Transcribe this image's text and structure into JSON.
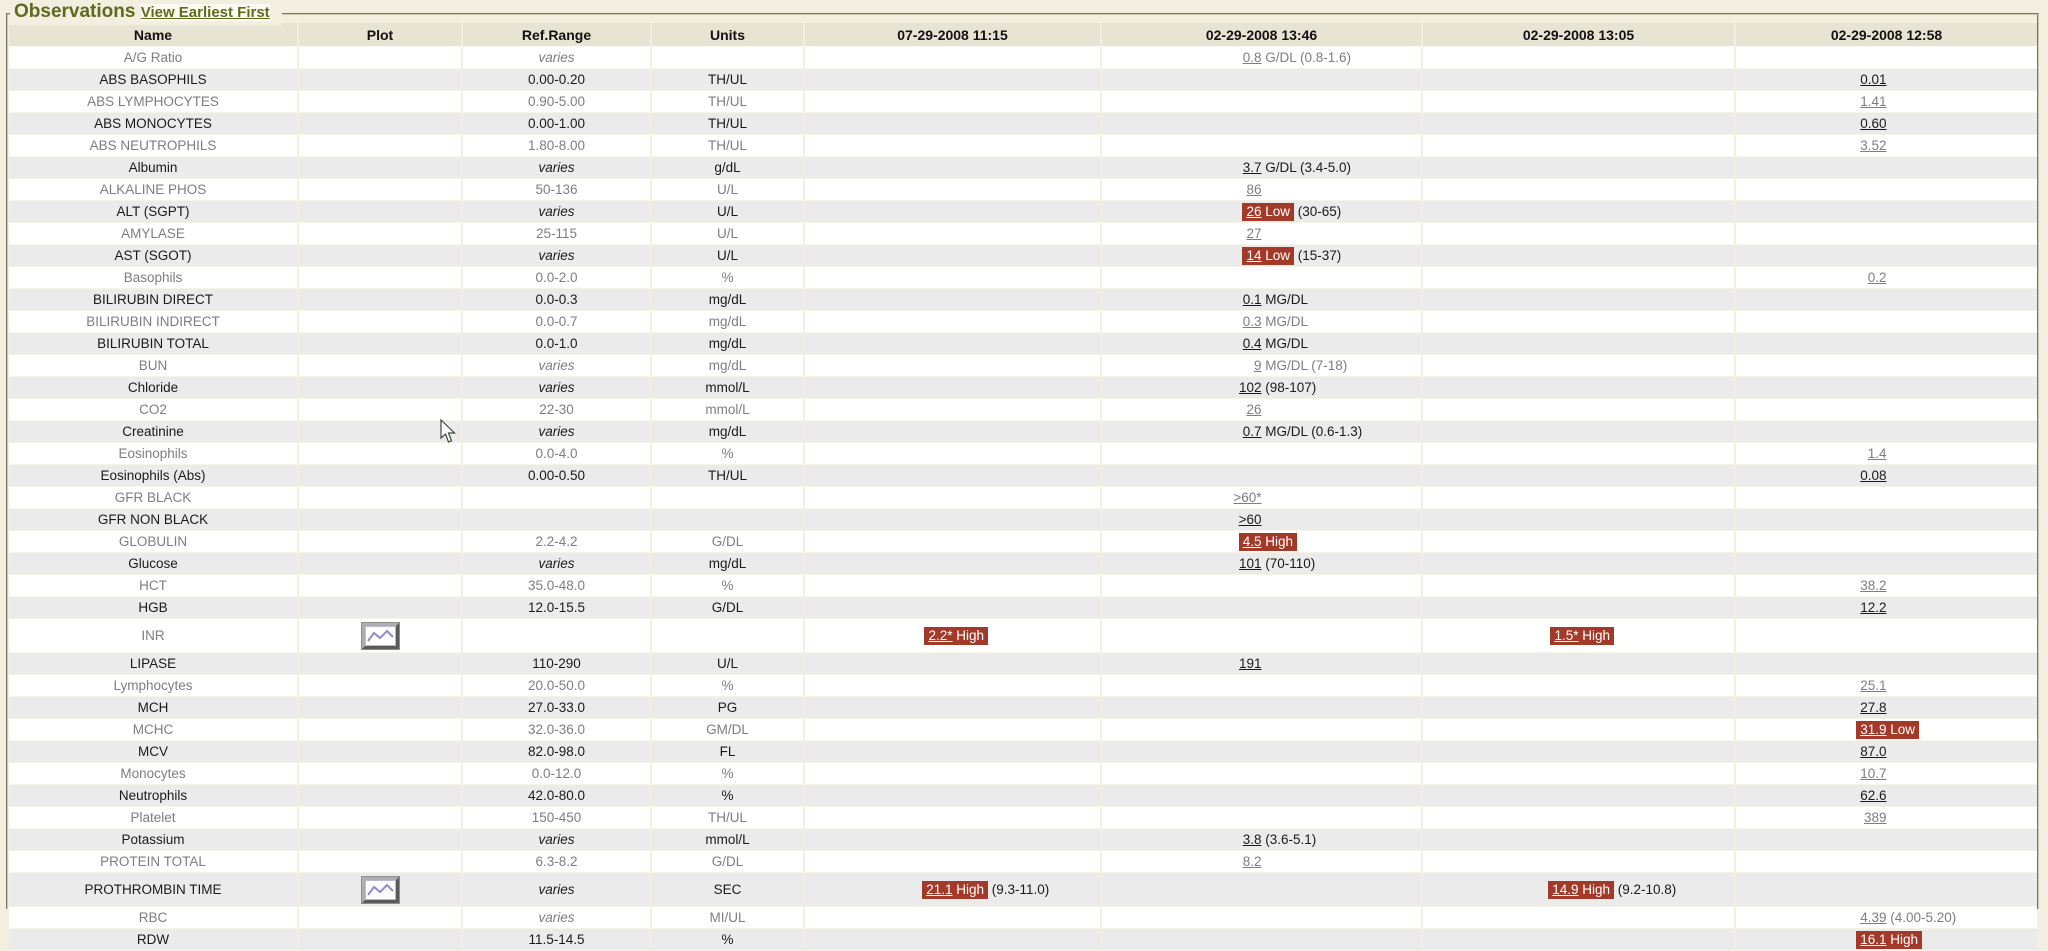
{
  "panel": {
    "title": "Observations",
    "view_link": "View Earliest First"
  },
  "colors": {
    "page_background": "#f2eee0",
    "header_background": "#e8e4d3",
    "stripe_gray": "#ebebeb",
    "stripe_white": "#ffffff",
    "abnormal_badge": "#a33a29",
    "accent_olive": "#5c6b1f"
  },
  "columns": [
    "Name",
    "Plot",
    "Ref.Range",
    "Units",
    "07-29-2008 11:15",
    "02-29-2008 13:46",
    "02-29-2008 13:05",
    "02-29-2008 12:58"
  ],
  "rows": [
    {
      "name": "A/G Ratio",
      "plot": false,
      "ref": "varies",
      "units": "",
      "results": [
        null,
        {
          "value": "0.8",
          "suffix": " G/DL (0.8-1.6)"
        },
        null,
        null
      ]
    },
    {
      "name": "ABS BASOPHILS",
      "plot": false,
      "ref": "0.00-0.20",
      "units": "TH/UL",
      "results": [
        null,
        null,
        null,
        {
          "value": "0.01"
        }
      ]
    },
    {
      "name": "ABS LYMPHOCYTES",
      "plot": false,
      "ref": "0.90-5.00",
      "units": "TH/UL",
      "results": [
        null,
        null,
        null,
        {
          "value": "1.41"
        }
      ]
    },
    {
      "name": "ABS MONOCYTES",
      "plot": false,
      "ref": "0.00-1.00",
      "units": "TH/UL",
      "results": [
        null,
        null,
        null,
        {
          "value": "0.60"
        }
      ]
    },
    {
      "name": "ABS NEUTROPHILS",
      "plot": false,
      "ref": "1.80-8.00",
      "units": "TH/UL",
      "results": [
        null,
        null,
        null,
        {
          "value": "3.52"
        }
      ]
    },
    {
      "name": "Albumin",
      "plot": false,
      "ref": "varies",
      "units": "g/dL",
      "results": [
        null,
        {
          "value": "3.7",
          "suffix": " G/DL (3.4-5.0)"
        },
        null,
        null
      ]
    },
    {
      "name": "ALKALINE PHOS",
      "plot": false,
      "ref": "50-136",
      "units": "U/L",
      "results": [
        null,
        {
          "value": "86"
        },
        null,
        null
      ]
    },
    {
      "name": "ALT (SGPT)",
      "plot": false,
      "ref": "varies",
      "units": "U/L",
      "results": [
        null,
        {
          "value": "26",
          "sev": "Low",
          "suffix": " (30-65)"
        },
        null,
        null
      ]
    },
    {
      "name": "AMYLASE",
      "plot": false,
      "ref": "25-115",
      "units": "U/L",
      "results": [
        null,
        {
          "value": "27"
        },
        null,
        null
      ]
    },
    {
      "name": "AST (SGOT)",
      "plot": false,
      "ref": "varies",
      "units": "U/L",
      "results": [
        null,
        {
          "value": "14",
          "sev": "Low",
          "suffix": " (15-37)"
        },
        null,
        null
      ]
    },
    {
      "name": "Basophils",
      "plot": false,
      "ref": "0.0-2.0",
      "units": "%",
      "results": [
        null,
        null,
        null,
        {
          "value": "0.2"
        }
      ]
    },
    {
      "name": "BILIRUBIN DIRECT",
      "plot": false,
      "ref": "0.0-0.3",
      "units": "mg/dL",
      "results": [
        null,
        {
          "value": "0.1",
          "suffix": " MG/DL"
        },
        null,
        null
      ]
    },
    {
      "name": "BILIRUBIN INDIRECT",
      "plot": false,
      "ref": "0.0-0.7",
      "units": "mg/dL",
      "results": [
        null,
        {
          "value": "0.3",
          "suffix": " MG/DL"
        },
        null,
        null
      ]
    },
    {
      "name": "BILIRUBIN TOTAL",
      "plot": false,
      "ref": "0.0-1.0",
      "units": "mg/dL",
      "results": [
        null,
        {
          "value": "0.4",
          "suffix": " MG/DL"
        },
        null,
        null
      ]
    },
    {
      "name": "BUN",
      "plot": false,
      "ref": "varies",
      "units": "mg/dL",
      "results": [
        null,
        {
          "value": "9",
          "suffix": " MG/DL (7-18)"
        },
        null,
        null
      ]
    },
    {
      "name": "Chloride",
      "plot": false,
      "ref": "varies",
      "units": "mmol/L",
      "results": [
        null,
        {
          "value": "102",
          "suffix": " (98-107)"
        },
        null,
        null
      ]
    },
    {
      "name": "CO2",
      "plot": false,
      "ref": "22-30",
      "units": "mmol/L",
      "results": [
        null,
        {
          "value": "26"
        },
        null,
        null
      ]
    },
    {
      "name": "Creatinine",
      "plot": false,
      "ref": "varies",
      "units": "mg/dL",
      "results": [
        null,
        {
          "value": "0.7",
          "suffix": " MG/DL (0.6-1.3)"
        },
        null,
        null
      ]
    },
    {
      "name": "Eosinophils",
      "plot": false,
      "ref": "0.0-4.0",
      "units": "%",
      "results": [
        null,
        null,
        null,
        {
          "value": "1.4"
        }
      ]
    },
    {
      "name": "Eosinophils (Abs)",
      "plot": false,
      "ref": "0.00-0.50",
      "units": "TH/UL",
      "results": [
        null,
        null,
        null,
        {
          "value": "0.08"
        }
      ]
    },
    {
      "name": "GFR BLACK",
      "plot": false,
      "ref": "",
      "units": "",
      "results": [
        null,
        {
          "value": ">60*"
        },
        null,
        null
      ]
    },
    {
      "name": "GFR NON BLACK",
      "plot": false,
      "ref": "",
      "units": "",
      "results": [
        null,
        {
          "value": ">60"
        },
        null,
        null
      ]
    },
    {
      "name": "GLOBULIN",
      "plot": false,
      "ref": "2.2-4.2",
      "units": "G/DL",
      "results": [
        null,
        {
          "value": "4.5",
          "sev": "High"
        },
        null,
        null
      ]
    },
    {
      "name": "Glucose",
      "plot": false,
      "ref": "varies",
      "units": "mg/dL",
      "results": [
        null,
        {
          "value": "101",
          "suffix": " (70-110)"
        },
        null,
        null
      ]
    },
    {
      "name": "HCT",
      "plot": false,
      "ref": "35.0-48.0",
      "units": "%",
      "results": [
        null,
        null,
        null,
        {
          "value": "38.2"
        }
      ]
    },
    {
      "name": "HGB",
      "plot": false,
      "ref": "12.0-15.5",
      "units": "G/DL",
      "results": [
        null,
        null,
        null,
        {
          "value": "12.2"
        }
      ]
    },
    {
      "name": "INR",
      "plot": true,
      "ref": "",
      "units": "",
      "results": [
        {
          "value": "2.2*",
          "sev": "High"
        },
        null,
        {
          "value": "1.5*",
          "sev": "High"
        },
        null
      ]
    },
    {
      "name": "LIPASE",
      "plot": false,
      "ref": "110-290",
      "units": "U/L",
      "results": [
        null,
        {
          "value": "191"
        },
        null,
        null
      ]
    },
    {
      "name": "Lymphocytes",
      "plot": false,
      "ref": "20.0-50.0",
      "units": "%",
      "results": [
        null,
        null,
        null,
        {
          "value": "25.1"
        }
      ]
    },
    {
      "name": "MCH",
      "plot": false,
      "ref": "27.0-33.0",
      "units": "PG",
      "results": [
        null,
        null,
        null,
        {
          "value": "27.8"
        }
      ]
    },
    {
      "name": "MCHC",
      "plot": false,
      "ref": "32.0-36.0",
      "units": "GM/DL",
      "results": [
        null,
        null,
        null,
        {
          "value": "31.9",
          "sev": "Low"
        }
      ]
    },
    {
      "name": "MCV",
      "plot": false,
      "ref": "82.0-98.0",
      "units": "FL",
      "results": [
        null,
        null,
        null,
        {
          "value": "87.0"
        }
      ]
    },
    {
      "name": "Monocytes",
      "plot": false,
      "ref": "0.0-12.0",
      "units": "%",
      "results": [
        null,
        null,
        null,
        {
          "value": "10.7"
        }
      ]
    },
    {
      "name": "Neutrophils",
      "plot": false,
      "ref": "42.0-80.0",
      "units": "%",
      "results": [
        null,
        null,
        null,
        {
          "value": "62.6"
        }
      ]
    },
    {
      "name": "Platelet",
      "plot": false,
      "ref": "150-450",
      "units": "TH/UL",
      "results": [
        null,
        null,
        null,
        {
          "value": "389"
        }
      ]
    },
    {
      "name": "Potassium",
      "plot": false,
      "ref": "varies",
      "units": "mmol/L",
      "results": [
        null,
        {
          "value": "3.8",
          "suffix": " (3.6-5.1)"
        },
        null,
        null
      ]
    },
    {
      "name": "PROTEIN TOTAL",
      "plot": false,
      "ref": "6.3-8.2",
      "units": "G/DL",
      "results": [
        null,
        {
          "value": "8.2"
        },
        null,
        null
      ]
    },
    {
      "name": "PROTHROMBIN TIME",
      "plot": true,
      "ref": "varies",
      "units": "SEC",
      "results": [
        {
          "value": "21.1",
          "sev": "High",
          "suffix": " (9.3-11.0)"
        },
        null,
        {
          "value": "14.9",
          "sev": "High",
          "suffix": " (9.2-10.8)"
        },
        null
      ]
    },
    {
      "name": "RBC",
      "plot": false,
      "ref": "varies",
      "units": "MI/UL",
      "results": [
        null,
        null,
        null,
        {
          "value": "4.39",
          "suffix": " (4.00-5.20)"
        }
      ]
    },
    {
      "name": "RDW",
      "plot": false,
      "ref": "11.5-14.5",
      "units": "%",
      "results": [
        null,
        null,
        null,
        {
          "value": "16.1",
          "sev": "High"
        }
      ]
    }
  ]
}
